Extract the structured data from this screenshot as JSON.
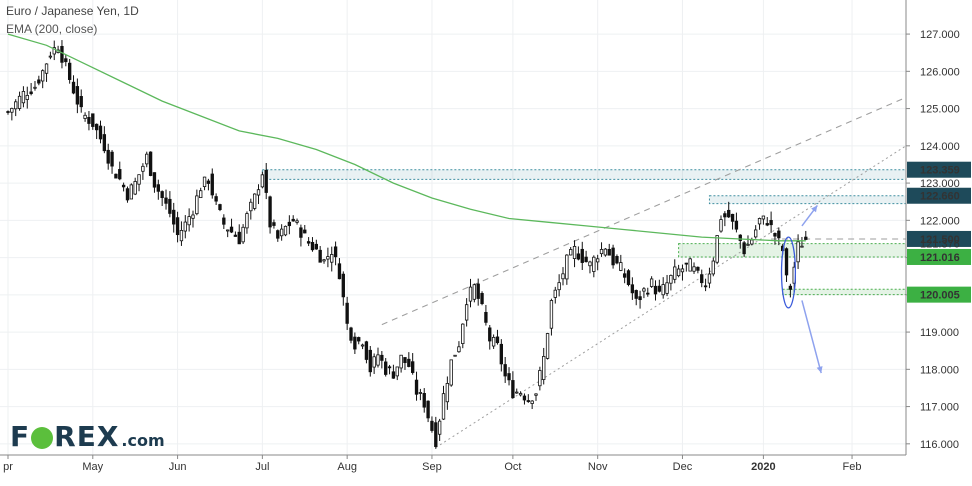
{
  "header": {
    "title": "Euro / Japanese Yen, 1D",
    "indicator": "EMA (200, close)"
  },
  "logo": {
    "text_left": "F",
    "text_right": "REX",
    "suffix": ".com"
  },
  "colors": {
    "candle": "#111111",
    "ema": "#5cb85c",
    "resistance_box": "#3f8fa0",
    "support_box": "#4caf50",
    "trendline": "#9e9e9e",
    "arrow": "#8ea2ee",
    "label_dark": "#1e4a5a",
    "label_green": "#3cb043"
  },
  "chart_data": {
    "type": "candlestick",
    "title": "Euro / Japanese Yen, 1D",
    "indicator": "EMA (200, close)",
    "y_axis": {
      "ticks": [
        "127.000",
        "126.000",
        "125.000",
        "124.000",
        "123.000",
        "122.000",
        "121.000",
        "120.000",
        "119.000",
        "118.000",
        "117.000",
        "116.000"
      ],
      "range": [
        115.7,
        127.7
      ]
    },
    "x_axis": {
      "ticks": [
        "pr",
        "May",
        "Jun",
        "Jul",
        "Aug",
        "Sep",
        "Oct",
        "Nov",
        "Dec",
        "2020",
        "Feb"
      ],
      "tick_index": [
        0,
        22,
        44,
        66,
        88,
        110,
        131,
        153,
        175,
        196,
        219
      ],
      "range_index": [
        0,
        233
      ]
    },
    "price_levels": [
      {
        "label": "123.359",
        "value": 123.359,
        "style": "dark"
      },
      {
        "label": "122.660",
        "value": 122.66,
        "style": "dark"
      },
      {
        "label": "121.500",
        "value": 121.5,
        "style": "dark"
      },
      {
        "label": "121.376",
        "value": 121.376,
        "style": "plain"
      },
      {
        "label": "121.016",
        "value": 121.016,
        "style": "green"
      },
      {
        "label": "120.005",
        "value": 120.005,
        "style": "green"
      }
    ],
    "series": [
      {
        "name": "EUR/JPY",
        "kind": "close_path",
        "points": [
          [
            0,
            124.9
          ],
          [
            4,
            125.4
          ],
          [
            7,
            125.6
          ],
          [
            9,
            126.0
          ],
          [
            11,
            126.5
          ],
          [
            13,
            126.7
          ],
          [
            15,
            126.1
          ],
          [
            17,
            125.5
          ],
          [
            19,
            124.9
          ],
          [
            22,
            124.6
          ],
          [
            25,
            124.0
          ],
          [
            27,
            123.4
          ],
          [
            29,
            123.1
          ],
          [
            31,
            122.7
          ],
          [
            33,
            123.0
          ],
          [
            36,
            123.7
          ],
          [
            38,
            123.0
          ],
          [
            40,
            122.6
          ],
          [
            42,
            122.2
          ],
          [
            44,
            121.6
          ],
          [
            46,
            121.9
          ],
          [
            48,
            122.3
          ],
          [
            50,
            122.9
          ],
          [
            52,
            123.1
          ],
          [
            54,
            122.4
          ],
          [
            56,
            121.9
          ],
          [
            58,
            121.7
          ],
          [
            60,
            121.5
          ],
          [
            62,
            122.1
          ],
          [
            64,
            122.6
          ],
          [
            66,
            123.3
          ],
          [
            68,
            121.9
          ],
          [
            70,
            121.5
          ],
          [
            72,
            121.8
          ],
          [
            74,
            122.0
          ],
          [
            76,
            121.7
          ],
          [
            78,
            121.4
          ],
          [
            80,
            121.2
          ],
          [
            82,
            120.9
          ],
          [
            84,
            121.2
          ],
          [
            86,
            120.6
          ],
          [
            88,
            119.2
          ],
          [
            90,
            118.7
          ],
          [
            92,
            118.8
          ],
          [
            94,
            118.0
          ],
          [
            96,
            118.4
          ],
          [
            98,
            118.0
          ],
          [
            100,
            117.9
          ],
          [
            102,
            118.3
          ],
          [
            104,
            118.1
          ],
          [
            106,
            117.4
          ],
          [
            108,
            117.1
          ],
          [
            110,
            116.4
          ],
          [
            111,
            116.1
          ],
          [
            113,
            117.3
          ],
          [
            115,
            118.2
          ],
          [
            117,
            118.7
          ],
          [
            119,
            119.9
          ],
          [
            121,
            120.2
          ],
          [
            123,
            119.6
          ],
          [
            125,
            118.8
          ],
          [
            127,
            118.6
          ],
          [
            129,
            117.8
          ],
          [
            131,
            117.4
          ],
          [
            133,
            117.4
          ],
          [
            135,
            117.2
          ],
          [
            137,
            117.4
          ],
          [
            139,
            118.3
          ],
          [
            141,
            119.8
          ],
          [
            143,
            120.3
          ],
          [
            145,
            120.9
          ],
          [
            147,
            121.2
          ],
          [
            149,
            121.0
          ],
          [
            151,
            120.8
          ],
          [
            153,
            121.1
          ],
          [
            155,
            121.3
          ],
          [
            157,
            120.9
          ],
          [
            159,
            120.7
          ],
          [
            161,
            120.3
          ],
          [
            163,
            119.8
          ],
          [
            165,
            120.1
          ],
          [
            167,
            120.3
          ],
          [
            169,
            120.0
          ],
          [
            171,
            120.3
          ],
          [
            173,
            120.6
          ],
          [
            175,
            120.7
          ],
          [
            177,
            120.8
          ],
          [
            179,
            120.5
          ],
          [
            181,
            120.3
          ],
          [
            183,
            121.0
          ],
          [
            185,
            122.1
          ],
          [
            187,
            122.1
          ],
          [
            189,
            121.7
          ],
          [
            191,
            121.2
          ],
          [
            193,
            121.5
          ],
          [
            195,
            122.0
          ],
          [
            197,
            122.0
          ],
          [
            199,
            121.6
          ],
          [
            201,
            121.2
          ],
          [
            202,
            120.4
          ],
          [
            203,
            120.2
          ],
          [
            205,
            121.3
          ],
          [
            207,
            121.5
          ]
        ]
      },
      {
        "name": "EMA (200, close)",
        "kind": "line",
        "points": [
          [
            0,
            127.0
          ],
          [
            10,
            126.7
          ],
          [
            20,
            126.2
          ],
          [
            30,
            125.7
          ],
          [
            40,
            125.2
          ],
          [
            50,
            124.8
          ],
          [
            60,
            124.4
          ],
          [
            70,
            124.2
          ],
          [
            80,
            123.9
          ],
          [
            90,
            123.5
          ],
          [
            100,
            123.0
          ],
          [
            110,
            122.6
          ],
          [
            120,
            122.3
          ],
          [
            130,
            122.05
          ],
          [
            140,
            121.95
          ],
          [
            150,
            121.85
          ],
          [
            160,
            121.75
          ],
          [
            170,
            121.65
          ],
          [
            180,
            121.55
          ],
          [
            190,
            121.5
          ],
          [
            200,
            121.45
          ],
          [
            207,
            121.45
          ]
        ]
      }
    ],
    "zones": [
      {
        "kind": "resistance",
        "x": [
          66,
          233
        ],
        "y": [
          123.1,
          123.359
        ]
      },
      {
        "kind": "resistance",
        "x": [
          182,
          233
        ],
        "y": [
          122.45,
          122.66
        ]
      },
      {
        "kind": "support",
        "x": [
          174,
          233
        ],
        "y": [
          121.016,
          121.376
        ]
      },
      {
        "kind": "support",
        "x": [
          201,
          233
        ],
        "y": [
          120.005,
          120.15
        ]
      }
    ],
    "trendlines": [
      {
        "style": "dotted",
        "from": [
          111,
          115.9
        ],
        "to": [
          233,
          124.0
        ]
      },
      {
        "style": "dashed",
        "from": [
          97,
          119.2
        ],
        "to": [
          233,
          125.3
        ]
      },
      {
        "style": "dashed",
        "from": [
          198,
          121.5
        ],
        "to": [
          233,
          121.5
        ]
      }
    ],
    "annotations": [
      {
        "kind": "arrow",
        "from": [
          206,
          121.85
        ],
        "to": [
          210,
          122.4
        ]
      },
      {
        "kind": "arrow",
        "from": [
          206,
          119.85
        ],
        "to": [
          211,
          117.9
        ]
      },
      {
        "kind": "ellipse",
        "center": [
          202.5,
          120.6
        ],
        "radius": [
          1.8,
          0.95
        ]
      }
    ]
  }
}
